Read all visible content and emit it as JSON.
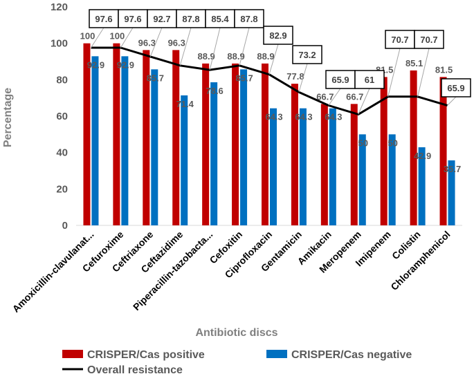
{
  "chart_data": {
    "type": "bar",
    "title": "",
    "xlabel": "Antibiotic discs",
    "ylabel": "Percentage",
    "ylim": [
      0,
      120
    ],
    "yticks": [
      "0",
      "20",
      "40",
      "60",
      "80",
      "100",
      "120"
    ],
    "categories": [
      "Amoxicillin-clavulanat...",
      "Cefuroxime",
      "Ceftriaxone",
      "Ceftazidime",
      "Piperacillin-tazobacta...",
      "Cefoxitin",
      "Ciprofloxacin",
      "Gentamicin",
      "Amikacin",
      "Meropenem",
      "Imipenem",
      "Colistin",
      "Chloramphenicol"
    ],
    "series": [
      {
        "name": "CRISPER/Cas positive",
        "kind": "bar",
        "color": "#c00000",
        "values": [
          100,
          100,
          96.3,
          96.3,
          88.9,
          88.9,
          88.9,
          77.8,
          66.7,
          66.7,
          81.5,
          85.1,
          81.5
        ],
        "labels": [
          "100",
          "100",
          "96.3",
          "96.3",
          "88.9",
          "88.9",
          "88.9",
          "77.8",
          "66.7",
          "66.7",
          "81.5",
          "85.1",
          "81.5"
        ]
      },
      {
        "name": "CRISPER/Cas negative",
        "kind": "bar",
        "color": "#0070c0",
        "values": [
          92.9,
          92.9,
          85.7,
          71.4,
          78.6,
          85.7,
          64.3,
          64.3,
          64.3,
          50,
          50,
          42.9,
          35.7
        ],
        "labels": [
          "92.9",
          "92.9",
          "85.7",
          "71.4",
          "78.6",
          "85.7",
          "64.3",
          "64.3",
          "64.3",
          "50",
          "50",
          "42.9",
          "35.7"
        ]
      },
      {
        "name": "Overall resistance",
        "kind": "line",
        "color": "#000000",
        "values": [
          97.6,
          97.6,
          92.7,
          87.8,
          85.4,
          87.8,
          82.9,
          73.2,
          65.9,
          61,
          70.7,
          70.7,
          65.9
        ],
        "labels": [
          "97.6",
          "97.6",
          "92.7",
          "87.8",
          "85.4",
          "87.8",
          "82.9",
          "73.2",
          "65.9",
          "61",
          "70.7",
          "70.7",
          "65.9"
        ]
      }
    ],
    "legend": [
      {
        "name": "CRISPER/Cas positive",
        "color": "#c00000",
        "kind": "bar"
      },
      {
        "name": "CRISPER/Cas negative",
        "color": "#0070c0",
        "kind": "bar"
      },
      {
        "name": "Overall resistance",
        "color": "#000000",
        "kind": "line"
      }
    ]
  }
}
